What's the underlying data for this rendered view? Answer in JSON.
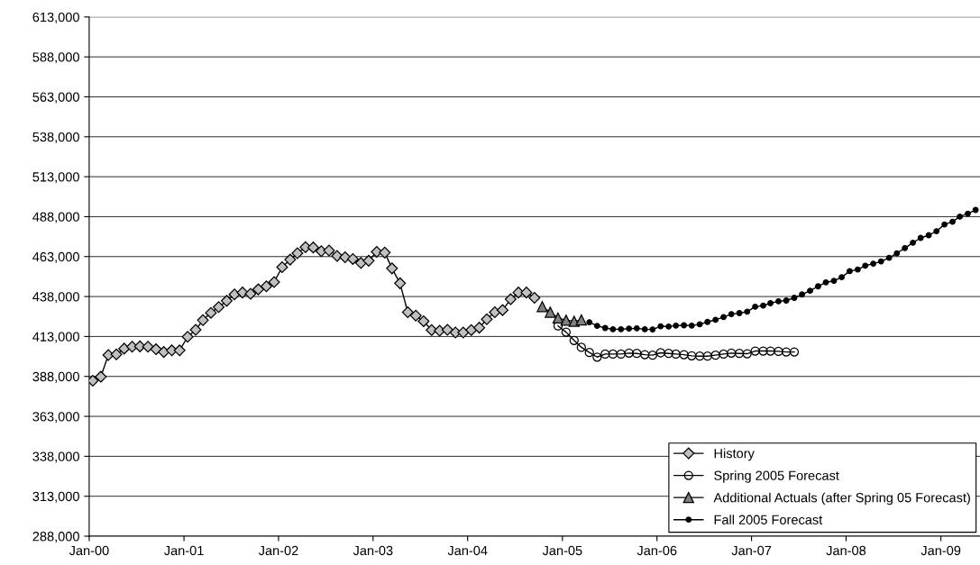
{
  "chart_data": {
    "type": "line",
    "xlim": [
      "2000-01-01",
      "2009-06-01"
    ],
    "xticks": [
      {
        "value": "2000-01-01",
        "label": "Jan-00"
      },
      {
        "value": "2001-01-01",
        "label": "Jan-01"
      },
      {
        "value": "2002-01-01",
        "label": "Jan-02"
      },
      {
        "value": "2003-01-01",
        "label": "Jan-03"
      },
      {
        "value": "2004-01-01",
        "label": "Jan-04"
      },
      {
        "value": "2005-01-01",
        "label": "Jan-05"
      },
      {
        "value": "2006-01-01",
        "label": "Jan-06"
      },
      {
        "value": "2007-01-01",
        "label": "Jan-07"
      },
      {
        "value": "2008-01-01",
        "label": "Jan-08"
      },
      {
        "value": "2009-01-01",
        "label": "Jan-09"
      }
    ],
    "ylim": [
      288000,
      613000
    ],
    "yticks": [
      {
        "value": 288000,
        "label": "288,000"
      },
      {
        "value": 313000,
        "label": "313,000"
      },
      {
        "value": 338000,
        "label": "338,000"
      },
      {
        "value": 363000,
        "label": "363,000"
      },
      {
        "value": 388000,
        "label": "388,000"
      },
      {
        "value": 413000,
        "label": "413,000"
      },
      {
        "value": 438000,
        "label": "438,000"
      },
      {
        "value": 463000,
        "label": "463,000"
      },
      {
        "value": 488000,
        "label": "488,000"
      },
      {
        "value": 513000,
        "label": "513,000"
      },
      {
        "value": 538000,
        "label": "538,000"
      },
      {
        "value": 563000,
        "label": "563,000"
      },
      {
        "value": 588000,
        "label": "588,000"
      },
      {
        "value": 613000,
        "label": "613,000"
      }
    ],
    "grid": "y",
    "legend": "bottom right",
    "line_style": "solid",
    "series": [
      {
        "name": "History",
        "color": "#c0c0c0",
        "marker": "diamond",
        "x": [
          "2000-01-15",
          "2000-02-15",
          "2000-03-15",
          "2000-04-15",
          "2000-05-15",
          "2000-06-15",
          "2000-07-15",
          "2000-08-15",
          "2000-09-15",
          "2000-10-15",
          "2000-11-15",
          "2000-12-15",
          "2001-01-15",
          "2001-02-15",
          "2001-03-15",
          "2001-04-15",
          "2001-05-15",
          "2001-06-15",
          "2001-07-15",
          "2001-08-15",
          "2001-09-15",
          "2001-10-15",
          "2001-11-15",
          "2001-12-15",
          "2002-01-15",
          "2002-02-15",
          "2002-03-15",
          "2002-04-15",
          "2002-05-15",
          "2002-06-15",
          "2002-07-15",
          "2002-08-15",
          "2002-09-15",
          "2002-10-15",
          "2002-11-15",
          "2002-12-15",
          "2003-01-15",
          "2003-02-15",
          "2003-03-15",
          "2003-04-15",
          "2003-05-15",
          "2003-06-15",
          "2003-07-15",
          "2003-08-15",
          "2003-09-15",
          "2003-10-15",
          "2003-11-15",
          "2003-12-15",
          "2004-01-15",
          "2004-02-15",
          "2004-03-15",
          "2004-04-15",
          "2004-05-15",
          "2004-06-15",
          "2004-07-15",
          "2004-08-15",
          "2004-09-15"
        ],
        "values": [
          385300,
          387800,
          401400,
          401800,
          405400,
          406600,
          406800,
          406600,
          405000,
          403300,
          404300,
          404300,
          412800,
          417200,
          423200,
          427800,
          431400,
          435300,
          439300,
          440500,
          439700,
          442500,
          444400,
          447100,
          456400,
          461100,
          465100,
          468900,
          468700,
          466400,
          466800,
          463400,
          462600,
          461500,
          459000,
          460400,
          466000,
          465500,
          455600,
          446300,
          428200,
          426100,
          422500,
          417000,
          416600,
          417200,
          415500,
          415500,
          417000,
          418500,
          423800,
          428200,
          429500,
          436300,
          440500,
          440500,
          437200
        ]
      },
      {
        "name": "Spring 2005 Forecast",
        "color": "#000000",
        "marker": "circle_open",
        "x": [
          "2004-12-15",
          "2005-01-15",
          "2005-02-15",
          "2005-03-15",
          "2005-04-15",
          "2005-05-15",
          "2005-06-15",
          "2005-07-15",
          "2005-08-15",
          "2005-09-15",
          "2005-10-15",
          "2005-11-15",
          "2005-12-15",
          "2006-01-15",
          "2006-02-15",
          "2006-03-15",
          "2006-04-15",
          "2006-05-15",
          "2006-06-15",
          "2006-07-15",
          "2006-08-15",
          "2006-09-15",
          "2006-10-15",
          "2006-11-15",
          "2006-12-15",
          "2007-01-15",
          "2007-02-15",
          "2007-03-15",
          "2007-04-15",
          "2007-05-15",
          "2007-06-15"
        ],
        "values": [
          419600,
          415700,
          410500,
          406200,
          403000,
          400100,
          402000,
          402000,
          402000,
          402600,
          402400,
          401600,
          401300,
          402800,
          402400,
          402000,
          401600,
          400900,
          400700,
          400700,
          401300,
          402000,
          402600,
          402400,
          402200,
          403900,
          403900,
          403900,
          403700,
          403300,
          403300
        ]
      },
      {
        "name": "Additional Actuals (after Spring 05 Forecast)",
        "color": "#808080",
        "marker": "triangle",
        "x": [
          "2004-10-15",
          "2004-11-15",
          "2004-12-15",
          "2005-01-15",
          "2005-02-15",
          "2005-03-15"
        ],
        "values": [
          431700,
          428200,
          424600,
          423200,
          422500,
          423400
        ]
      },
      {
        "name": "Fall 2005 Forecast",
        "color": "#000000",
        "marker": "circle_small",
        "x": [
          "2005-04-15",
          "2005-05-15",
          "2005-06-15",
          "2005-07-15",
          "2005-08-15",
          "2005-09-15",
          "2005-10-15",
          "2005-11-15",
          "2005-12-15",
          "2006-01-15",
          "2006-02-15",
          "2006-03-15",
          "2006-04-15",
          "2006-05-15",
          "2006-06-15",
          "2006-07-15",
          "2006-08-15",
          "2006-09-15",
          "2006-10-15",
          "2006-11-15",
          "2006-12-15",
          "2007-01-15",
          "2007-02-15",
          "2007-03-15",
          "2007-04-15",
          "2007-05-15",
          "2007-06-15",
          "2007-07-15",
          "2007-08-15",
          "2007-09-15",
          "2007-10-15",
          "2007-11-15",
          "2007-12-15",
          "2008-01-15",
          "2008-02-15",
          "2008-03-15",
          "2008-04-15",
          "2008-05-15",
          "2008-06-15",
          "2008-07-15",
          "2008-08-15",
          "2008-09-15",
          "2008-10-15",
          "2008-11-15",
          "2008-12-15",
          "2009-01-15",
          "2009-02-15",
          "2009-03-15",
          "2009-04-15",
          "2009-05-15"
        ],
        "values": [
          421900,
          419600,
          418300,
          417500,
          417500,
          417900,
          418100,
          417500,
          417400,
          419400,
          419200,
          419800,
          420000,
          419800,
          420600,
          422100,
          423400,
          425100,
          427000,
          427600,
          428500,
          431600,
          432300,
          433800,
          435000,
          435500,
          437200,
          439300,
          441600,
          444400,
          446900,
          447800,
          450100,
          453900,
          454900,
          457300,
          458600,
          460000,
          462200,
          465100,
          468300,
          471700,
          474700,
          476400,
          478900,
          483100,
          484800,
          488000,
          489900,
          492200
        ]
      }
    ]
  }
}
